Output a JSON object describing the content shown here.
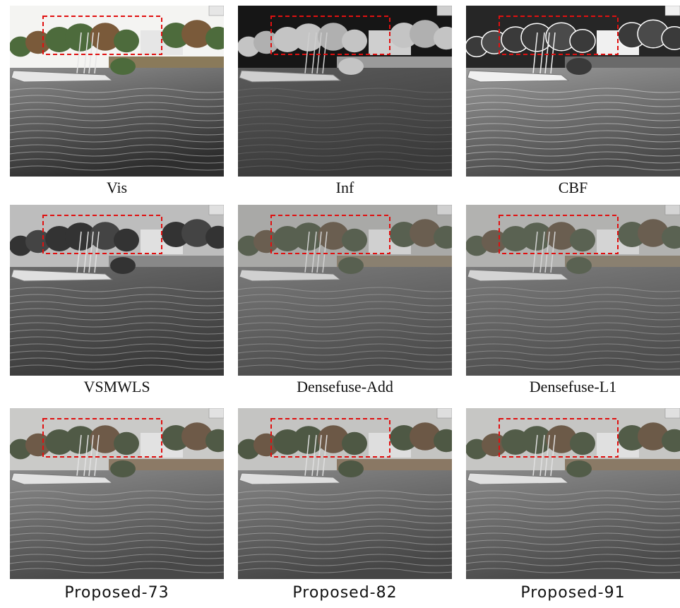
{
  "figure": {
    "panels": [
      {
        "label": "Vis"
      },
      {
        "label": "Inf"
      },
      {
        "label": "CBF"
      },
      {
        "label": "VSMWLS"
      },
      {
        "label": "Densefuse-Add"
      },
      {
        "label": "Densefuse-L1"
      },
      {
        "label": "Proposed-73"
      },
      {
        "label": "Proposed-82"
      },
      {
        "label": "Proposed-91"
      }
    ]
  }
}
